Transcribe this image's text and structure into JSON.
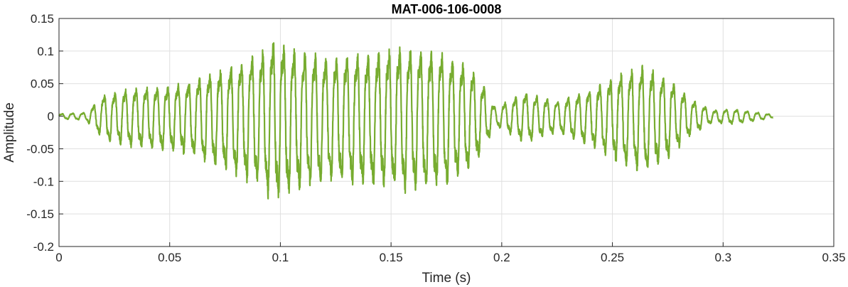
{
  "chart_data": {
    "type": "line",
    "title": "MAT-006-106-0008",
    "xlabel": "Time (s)",
    "ylabel": "Amplitude",
    "xlim": [
      0,
      0.35
    ],
    "ylim": [
      -0.2,
      0.15
    ],
    "xticks": [
      0,
      0.05,
      0.1,
      0.15,
      0.2,
      0.25,
      0.3,
      0.35
    ],
    "xtick_labels": [
      "0",
      "0.05",
      "0.1",
      "0.15",
      "0.2",
      "0.25",
      "0.3",
      "0.35"
    ],
    "yticks": [
      -0.2,
      -0.15,
      -0.1,
      -0.05,
      0,
      0.05,
      0.1,
      0.15
    ],
    "ytick_labels": [
      "-0.2",
      "-0.15",
      "-0.1",
      "-0.05",
      "0",
      "0.05",
      "0.1",
      "0.15"
    ],
    "grid": true,
    "series": [
      {
        "color": "#77ac30",
        "duration": 0.3225,
        "carrier_frequency_hz": 210,
        "envelope": [
          [
            0,
            0.004
          ],
          [
            0.012,
            0.006
          ],
          [
            0.016,
            0.02
          ],
          [
            0.02,
            0.035
          ],
          [
            0.03,
            0.045
          ],
          [
            0.04,
            0.05
          ],
          [
            0.05,
            0.052
          ],
          [
            0.06,
            0.06
          ],
          [
            0.07,
            0.075
          ],
          [
            0.08,
            0.09
          ],
          [
            0.09,
            0.105
          ],
          [
            0.097,
            0.13
          ],
          [
            0.105,
            0.115
          ],
          [
            0.12,
            0.1
          ],
          [
            0.14,
            0.105
          ],
          [
            0.155,
            0.115
          ],
          [
            0.175,
            0.105
          ],
          [
            0.185,
            0.085
          ],
          [
            0.192,
            0.05
          ],
          [
            0.197,
            0.015
          ],
          [
            0.2,
            0.02
          ],
          [
            0.21,
            0.04
          ],
          [
            0.225,
            0.025
          ],
          [
            0.24,
            0.045
          ],
          [
            0.255,
            0.075
          ],
          [
            0.265,
            0.085
          ],
          [
            0.275,
            0.065
          ],
          [
            0.285,
            0.03
          ],
          [
            0.295,
            0.01
          ],
          [
            0.305,
            0.012
          ],
          [
            0.322,
            0.003
          ]
        ]
      }
    ]
  }
}
